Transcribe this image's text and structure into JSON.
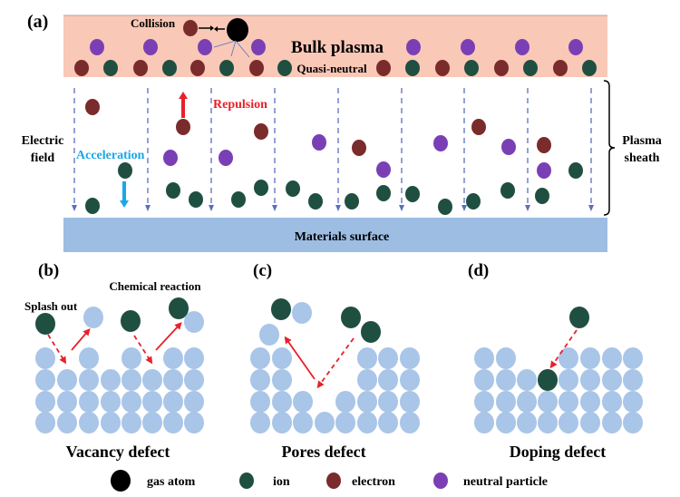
{
  "panel_a": {
    "label": "(a)",
    "collision": "Collision",
    "bulk_plasma": "Bulk plasma",
    "quasi_neutral": "Quasi-neutral",
    "repulsion": "Repulsion",
    "acceleration": "Acceleration",
    "electric_field": [
      "Electric",
      "field"
    ],
    "plasma_sheath": [
      "Plasma",
      "sheath"
    ],
    "materials_surface": "Materials surface"
  },
  "panel_b": {
    "label": "(b)",
    "splash_out": "Splash out",
    "chemical_reaction": "Chemical reaction",
    "title": "Vacancy defect"
  },
  "panel_c": {
    "label": "(c)",
    "title": "Pores defect"
  },
  "panel_d": {
    "label": "(d)",
    "title": "Doping defect"
  },
  "legend": [
    {
      "label": "gas atom",
      "color": "#000000"
    },
    {
      "label": "ion",
      "color": "#1f4f41"
    },
    {
      "label": "electron",
      "color": "#7a2b2b"
    },
    {
      "label": "neutral particle",
      "color": "#7b3fb5"
    }
  ],
  "colors": {
    "bulk_plasma": "#f9c8b7",
    "surface": "#9dbde3",
    "lattice_atom": "#a9c5e8",
    "ion": "#1f4f41",
    "electron": "#7a2b2b",
    "neutral": "#7b3fb5",
    "gas_atom": "#000000",
    "field_line": "#5a6fc0",
    "repulsion": "#e8202a",
    "acceleration": "#1aa7e8"
  }
}
